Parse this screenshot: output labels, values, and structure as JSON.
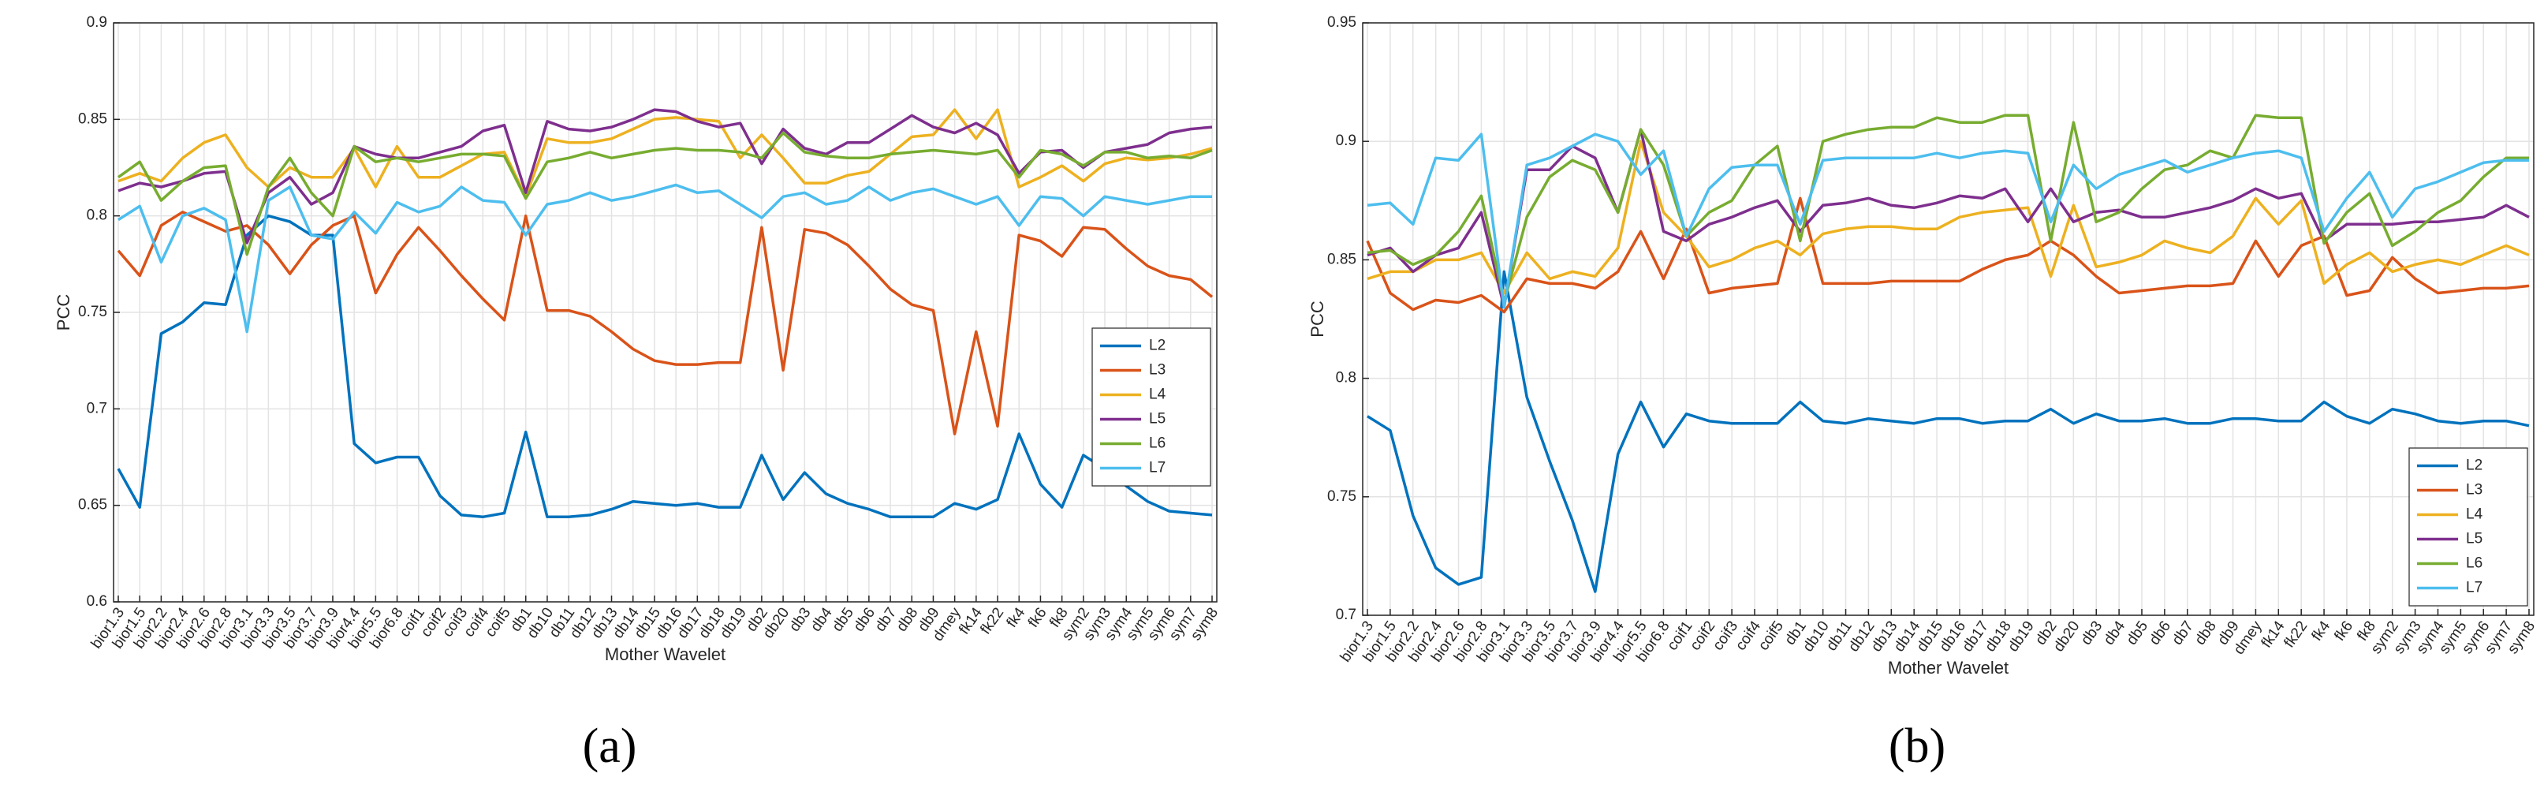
{
  "chart_data": [
    {
      "type": "line",
      "panel_label": "(a)",
      "x_label": "Mother Wavelet",
      "y_label": "PCC",
      "categories": [
        "bior1.3",
        "bior1.5",
        "bior2.2",
        "bior2.4",
        "bior2.6",
        "bior2.8",
        "bior3.1",
        "bior3.3",
        "bior3.5",
        "bior3.7",
        "bior3.9",
        "bior4.4",
        "bior5.5",
        "bior6.8",
        "coif1",
        "coif2",
        "coif3",
        "coif4",
        "coif5",
        "db1",
        "db10",
        "db11",
        "db12",
        "db13",
        "db14",
        "db15",
        "db16",
        "db17",
        "db18",
        "db19",
        "db2",
        "db20",
        "db3",
        "db4",
        "db5",
        "db6",
        "db7",
        "db8",
        "db9",
        "dmey",
        "fk14",
        "fk22",
        "fk4",
        "fk6",
        "fk8",
        "sym2",
        "sym3",
        "sym4",
        "sym5",
        "sym6",
        "sym7",
        "sym8"
      ],
      "ylim": [
        0.6,
        0.9
      ],
      "yticks": [
        0.6,
        0.65,
        0.7,
        0.75,
        0.8,
        0.85,
        0.9
      ],
      "grid": true,
      "legend": "right",
      "series": [
        {
          "name": "L2",
          "color": "#0072BD",
          "values": [
            0.669,
            0.649,
            0.739,
            0.745,
            0.755,
            0.754,
            0.79,
            0.8,
            0.797,
            0.79,
            0.79,
            0.682,
            0.672,
            0.675,
            0.675,
            0.655,
            0.645,
            0.644,
            0.646,
            0.688,
            0.644,
            0.644,
            0.645,
            0.648,
            0.652,
            0.651,
            0.65,
            0.651,
            0.649,
            0.649,
            0.676,
            0.653,
            0.667,
            0.656,
            0.651,
            0.648,
            0.644,
            0.644,
            0.644,
            0.651,
            0.648,
            0.653,
            0.687,
            0.661,
            0.649,
            0.676,
            0.669,
            0.66,
            0.652,
            0.647,
            0.646,
            0.645
          ]
        },
        {
          "name": "L3",
          "color": "#D95319",
          "values": [
            0.782,
            0.769,
            0.795,
            0.802,
            0.797,
            0.792,
            0.795,
            0.785,
            0.77,
            0.785,
            0.795,
            0.8,
            0.76,
            0.78,
            0.794,
            0.782,
            0.769,
            0.757,
            0.746,
            0.8,
            0.751,
            0.751,
            0.748,
            0.74,
            0.731,
            0.725,
            0.723,
            0.723,
            0.724,
            0.724,
            0.794,
            0.72,
            0.793,
            0.791,
            0.785,
            0.774,
            0.762,
            0.754,
            0.751,
            0.687,
            0.74,
            0.691,
            0.79,
            0.787,
            0.779,
            0.794,
            0.793,
            0.783,
            0.774,
            0.769,
            0.767,
            0.758
          ]
        },
        {
          "name": "L4",
          "color": "#EDB120",
          "values": [
            0.818,
            0.822,
            0.818,
            0.83,
            0.838,
            0.842,
            0.825,
            0.815,
            0.825,
            0.82,
            0.82,
            0.835,
            0.815,
            0.836,
            0.82,
            0.82,
            0.826,
            0.832,
            0.833,
            0.81,
            0.84,
            0.838,
            0.838,
            0.84,
            0.845,
            0.85,
            0.851,
            0.85,
            0.849,
            0.83,
            0.842,
            0.83,
            0.817,
            0.817,
            0.821,
            0.823,
            0.832,
            0.841,
            0.842,
            0.855,
            0.84,
            0.855,
            0.815,
            0.82,
            0.826,
            0.818,
            0.827,
            0.83,
            0.829,
            0.83,
            0.832,
            0.835
          ]
        },
        {
          "name": "L5",
          "color": "#7E2F8E",
          "values": [
            0.813,
            0.817,
            0.815,
            0.818,
            0.822,
            0.823,
            0.786,
            0.812,
            0.82,
            0.806,
            0.812,
            0.836,
            0.832,
            0.83,
            0.83,
            0.833,
            0.836,
            0.844,
            0.847,
            0.812,
            0.849,
            0.845,
            0.844,
            0.846,
            0.85,
            0.855,
            0.854,
            0.849,
            0.846,
            0.848,
            0.827,
            0.845,
            0.835,
            0.832,
            0.838,
            0.838,
            0.845,
            0.852,
            0.846,
            0.843,
            0.848,
            0.842,
            0.822,
            0.833,
            0.834,
            0.825,
            0.833,
            0.835,
            0.837,
            0.843,
            0.845,
            0.846
          ]
        },
        {
          "name": "L6",
          "color": "#77AC30",
          "values": [
            0.82,
            0.828,
            0.808,
            0.818,
            0.825,
            0.826,
            0.78,
            0.815,
            0.83,
            0.812,
            0.8,
            0.836,
            0.828,
            0.83,
            0.828,
            0.83,
            0.832,
            0.832,
            0.831,
            0.809,
            0.828,
            0.83,
            0.833,
            0.83,
            0.832,
            0.834,
            0.835,
            0.834,
            0.834,
            0.833,
            0.83,
            0.843,
            0.833,
            0.831,
            0.83,
            0.83,
            0.832,
            0.833,
            0.834,
            0.833,
            0.832,
            0.834,
            0.82,
            0.834,
            0.832,
            0.826,
            0.833,
            0.833,
            0.83,
            0.831,
            0.83,
            0.834
          ]
        },
        {
          "name": "L7",
          "color": "#4DBEEE",
          "values": [
            0.798,
            0.805,
            0.776,
            0.8,
            0.804,
            0.798,
            0.74,
            0.808,
            0.815,
            0.79,
            0.788,
            0.802,
            0.791,
            0.807,
            0.802,
            0.805,
            0.815,
            0.808,
            0.807,
            0.79,
            0.806,
            0.808,
            0.812,
            0.808,
            0.81,
            0.813,
            0.816,
            0.812,
            0.813,
            0.806,
            0.799,
            0.81,
            0.812,
            0.806,
            0.808,
            0.815,
            0.808,
            0.812,
            0.814,
            0.81,
            0.806,
            0.81,
            0.795,
            0.81,
            0.809,
            0.8,
            0.81,
            0.808,
            0.806,
            0.808,
            0.81,
            0.81
          ]
        }
      ]
    },
    {
      "type": "line",
      "panel_label": "(b)",
      "x_label": "Mother Wavelet",
      "y_label": "PCC",
      "categories": [
        "bior1.3",
        "bior1.5",
        "bior2.2",
        "bior2.4",
        "bior2.6",
        "bior2.8",
        "bior3.1",
        "bior3.3",
        "bior3.5",
        "bior3.7",
        "bior3.9",
        "bior4.4",
        "bior5.5",
        "bior6.8",
        "coif1",
        "coif2",
        "coif3",
        "coif4",
        "coif5",
        "db1",
        "db10",
        "db11",
        "db12",
        "db13",
        "db14",
        "db15",
        "db16",
        "db17",
        "db18",
        "db19",
        "db2",
        "db20",
        "db3",
        "db4",
        "db5",
        "db6",
        "db7",
        "db8",
        "db9",
        "dmey",
        "fk14",
        "fk22",
        "fk4",
        "fk6",
        "fk8",
        "sym2",
        "sym3",
        "sym4",
        "sym5",
        "sym6",
        "sym7",
        "sym8"
      ],
      "ylim": [
        0.7,
        0.95
      ],
      "yticks": [
        0.7,
        0.75,
        0.8,
        0.85,
        0.9,
        0.95
      ],
      "grid": true,
      "legend": "lower right",
      "series": [
        {
          "name": "L2",
          "color": "#0072BD",
          "values": [
            0.784,
            0.778,
            0.742,
            0.72,
            0.713,
            0.716,
            0.845,
            0.792,
            0.765,
            0.74,
            0.71,
            0.768,
            0.79,
            0.771,
            0.785,
            0.782,
            0.781,
            0.781,
            0.781,
            0.79,
            0.782,
            0.781,
            0.783,
            0.782,
            0.781,
            0.783,
            0.783,
            0.781,
            0.782,
            0.782,
            0.787,
            0.781,
            0.785,
            0.782,
            0.782,
            0.783,
            0.781,
            0.781,
            0.783,
            0.783,
            0.782,
            0.782,
            0.79,
            0.784,
            0.781,
            0.787,
            0.785,
            0.782,
            0.781,
            0.782,
            0.782,
            0.78
          ]
        },
        {
          "name": "L3",
          "color": "#D95319",
          "values": [
            0.858,
            0.836,
            0.829,
            0.833,
            0.832,
            0.835,
            0.828,
            0.842,
            0.84,
            0.84,
            0.838,
            0.845,
            0.862,
            0.842,
            0.863,
            0.836,
            0.838,
            0.839,
            0.84,
            0.876,
            0.84,
            0.84,
            0.84,
            0.841,
            0.841,
            0.841,
            0.841,
            0.846,
            0.85,
            0.852,
            0.858,
            0.852,
            0.843,
            0.836,
            0.837,
            0.838,
            0.839,
            0.839,
            0.84,
            0.858,
            0.843,
            0.856,
            0.86,
            0.835,
            0.837,
            0.851,
            0.842,
            0.836,
            0.837,
            0.838,
            0.838,
            0.839
          ]
        },
        {
          "name": "L4",
          "color": "#EDB120",
          "values": [
            0.842,
            0.845,
            0.845,
            0.85,
            0.85,
            0.853,
            0.836,
            0.853,
            0.842,
            0.845,
            0.843,
            0.855,
            0.9,
            0.87,
            0.86,
            0.847,
            0.85,
            0.855,
            0.858,
            0.852,
            0.861,
            0.863,
            0.864,
            0.864,
            0.863,
            0.863,
            0.868,
            0.87,
            0.871,
            0.872,
            0.843,
            0.873,
            0.847,
            0.849,
            0.852,
            0.858,
            0.855,
            0.853,
            0.86,
            0.876,
            0.865,
            0.875,
            0.84,
            0.848,
            0.853,
            0.845,
            0.848,
            0.85,
            0.848,
            0.852,
            0.856,
            0.852
          ]
        },
        {
          "name": "L5",
          "color": "#7E2F8E",
          "values": [
            0.852,
            0.855,
            0.845,
            0.852,
            0.855,
            0.87,
            0.83,
            0.888,
            0.888,
            0.898,
            0.893,
            0.87,
            0.905,
            0.862,
            0.858,
            0.865,
            0.868,
            0.872,
            0.875,
            0.862,
            0.873,
            0.874,
            0.876,
            0.873,
            0.872,
            0.874,
            0.877,
            0.876,
            0.88,
            0.866,
            0.88,
            0.866,
            0.87,
            0.871,
            0.868,
            0.868,
            0.87,
            0.872,
            0.875,
            0.88,
            0.876,
            0.878,
            0.858,
            0.865,
            0.865,
            0.865,
            0.866,
            0.866,
            0.867,
            0.868,
            0.873,
            0.868
          ]
        },
        {
          "name": "L6",
          "color": "#77AC30",
          "values": [
            0.853,
            0.854,
            0.848,
            0.852,
            0.862,
            0.877,
            0.832,
            0.868,
            0.885,
            0.892,
            0.888,
            0.87,
            0.905,
            0.89,
            0.86,
            0.87,
            0.875,
            0.89,
            0.898,
            0.858,
            0.9,
            0.903,
            0.905,
            0.906,
            0.906,
            0.91,
            0.908,
            0.908,
            0.911,
            0.911,
            0.858,
            0.908,
            0.866,
            0.87,
            0.88,
            0.888,
            0.89,
            0.896,
            0.893,
            0.911,
            0.91,
            0.91,
            0.857,
            0.87,
            0.878,
            0.856,
            0.862,
            0.87,
            0.875,
            0.885,
            0.893,
            0.893
          ]
        },
        {
          "name": "L7",
          "color": "#4DBEEE",
          "values": [
            0.873,
            0.874,
            0.865,
            0.893,
            0.892,
            0.903,
            0.83,
            0.89,
            0.893,
            0.898,
            0.903,
            0.9,
            0.886,
            0.896,
            0.86,
            0.88,
            0.889,
            0.89,
            0.89,
            0.865,
            0.892,
            0.893,
            0.893,
            0.893,
            0.893,
            0.895,
            0.893,
            0.895,
            0.896,
            0.895,
            0.866,
            0.89,
            0.88,
            0.886,
            0.889,
            0.892,
            0.887,
            0.89,
            0.893,
            0.895,
            0.896,
            0.893,
            0.862,
            0.876,
            0.887,
            0.868,
            0.88,
            0.883,
            0.887,
            0.891,
            0.892,
            0.892
          ]
        }
      ]
    }
  ]
}
